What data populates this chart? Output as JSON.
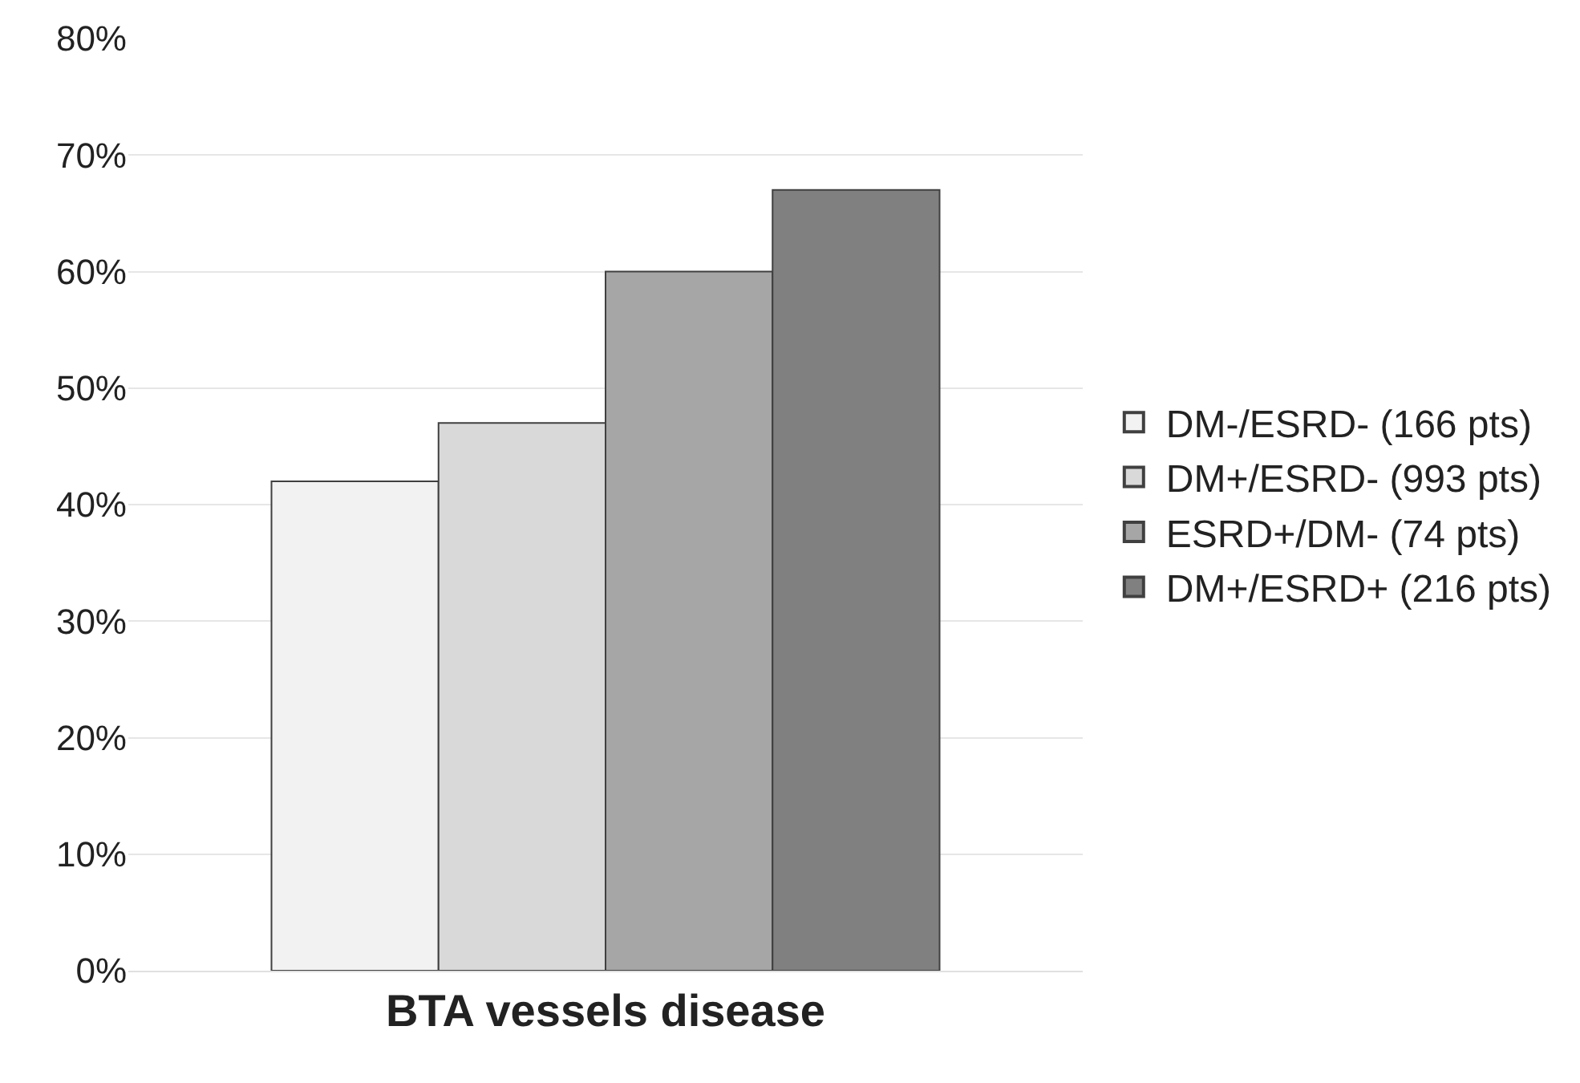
{
  "chart_data": {
    "type": "bar",
    "categories": [
      "BTA vessels disease"
    ],
    "series": [
      {
        "name": "DM-/ESRD- (166 pts)",
        "color": "#f2f2f2",
        "values": [
          42
        ]
      },
      {
        "name": "DM+/ESRD- (993 pts)",
        "color": "#d9d9d9",
        "values": [
          47
        ]
      },
      {
        "name": "ESRD+/DM- (74 pts)",
        "color": "#a6a6a6",
        "values": [
          60
        ]
      },
      {
        "name": "DM+/ESRD+ (216 pts)",
        "color": "#808080",
        "values": [
          67
        ]
      }
    ],
    "ylim": [
      0,
      80
    ],
    "yticks": [
      {
        "value": 0,
        "label": "0%"
      },
      {
        "value": 10,
        "label": "10%"
      },
      {
        "value": 20,
        "label": "20%"
      },
      {
        "value": 30,
        "label": "30%"
      },
      {
        "value": 40,
        "label": "40%"
      },
      {
        "value": 50,
        "label": "50%"
      },
      {
        "value": 60,
        "label": "60%"
      },
      {
        "value": 70,
        "label": "70%"
      },
      {
        "value": 80,
        "label": "80%"
      }
    ],
    "grid": "y",
    "legend": "right"
  }
}
